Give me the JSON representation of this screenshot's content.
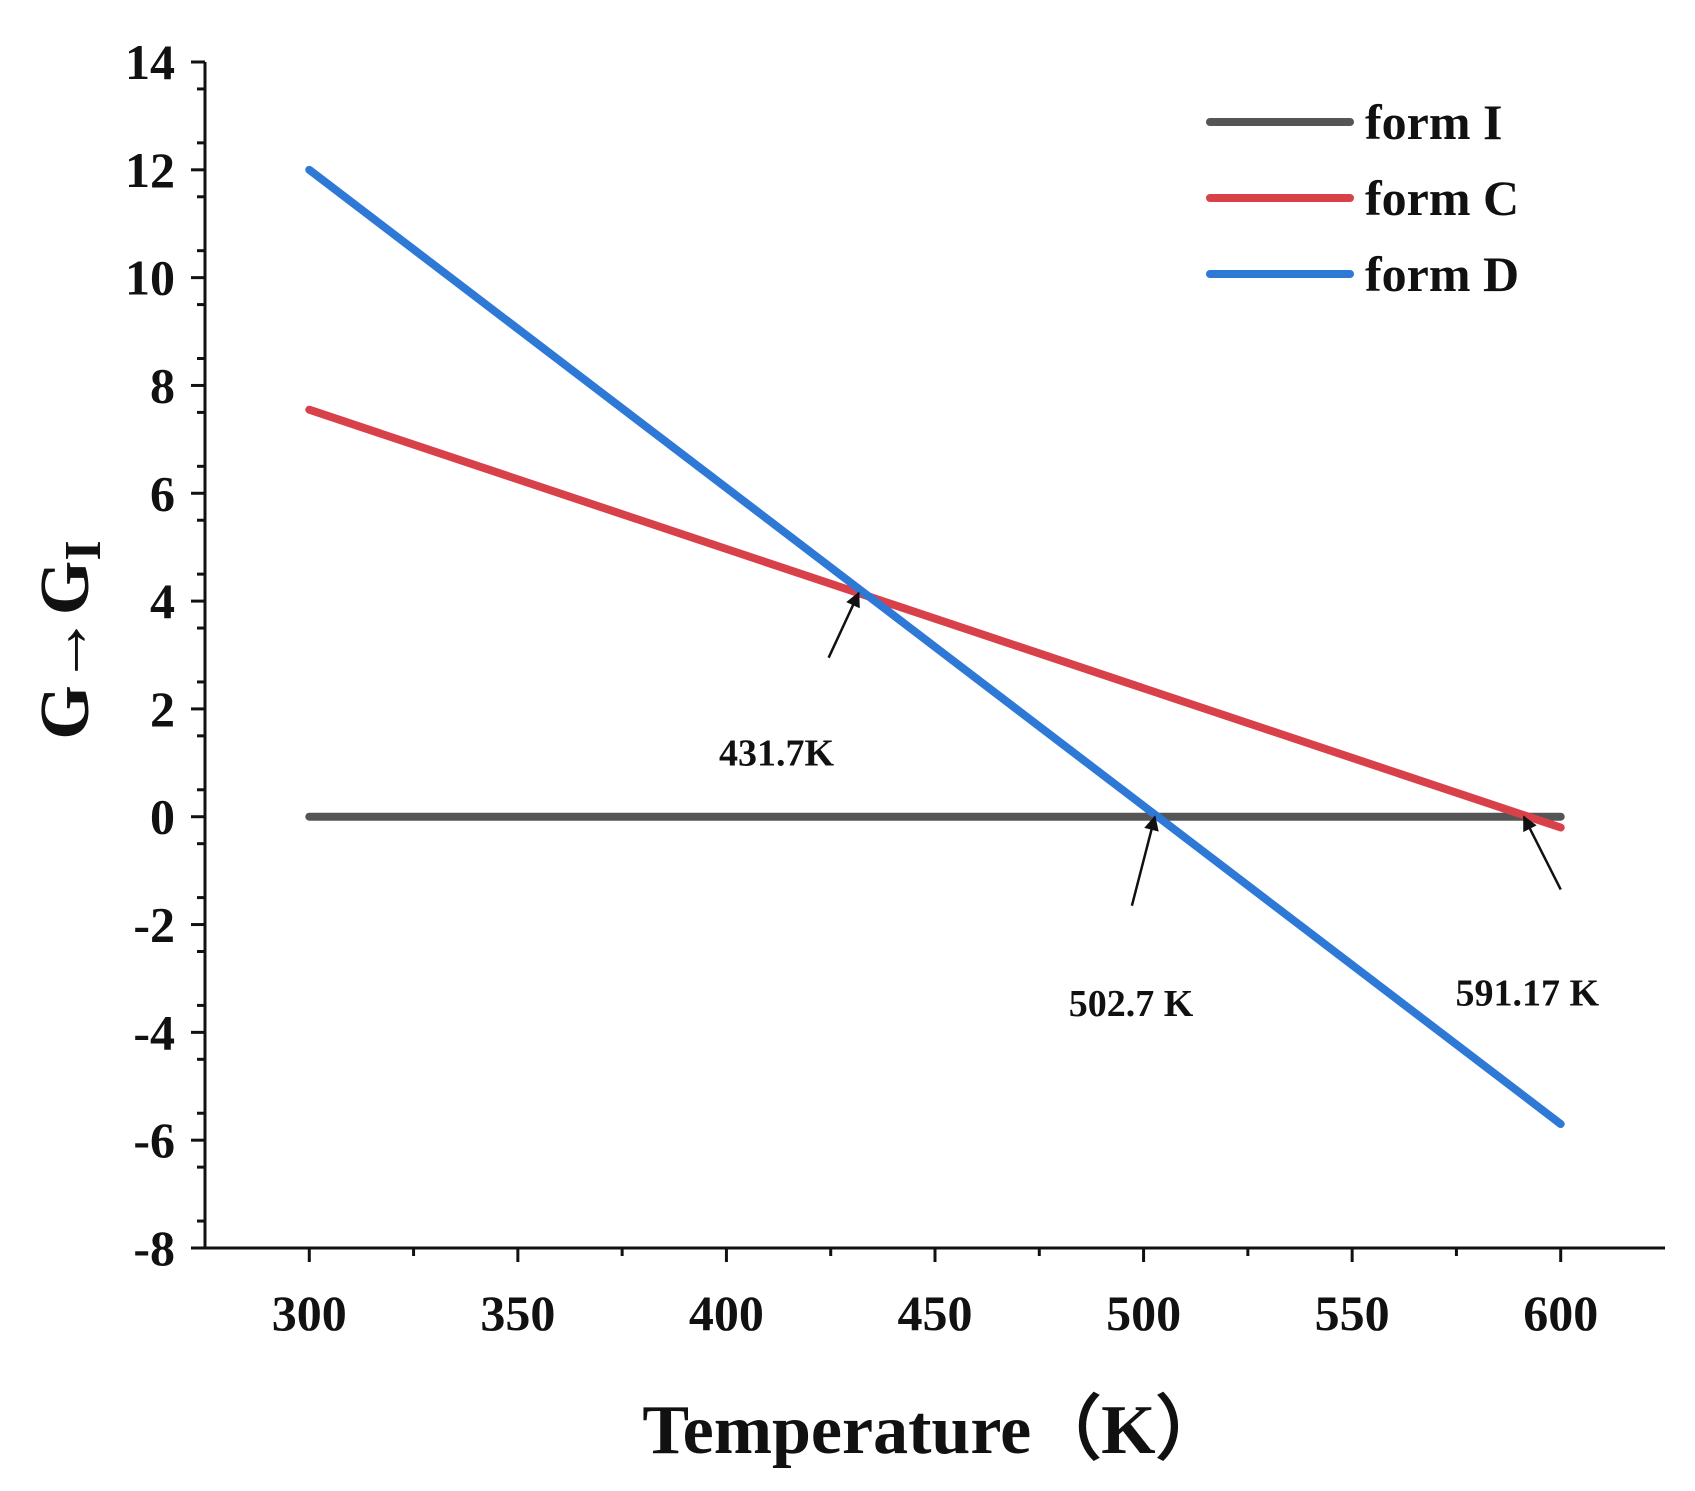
{
  "chart_data": {
    "type": "line",
    "title": "",
    "xlabel": "Temperature（K）",
    "ylabel_main": "G→G",
    "ylabel_sub": "I",
    "xlim": [
      275,
      625
    ],
    "ylim": [
      -8,
      14
    ],
    "x_ticks": [
      300,
      350,
      400,
      450,
      500,
      550,
      600
    ],
    "x_minor_ticks": [
      325,
      375,
      425,
      475,
      525,
      575
    ],
    "y_ticks": [
      -8,
      -6,
      -4,
      -2,
      0,
      2,
      4,
      6,
      8,
      10,
      12,
      14
    ],
    "y_minor_step": 0.5,
    "grid": false,
    "legend_position": "top-right",
    "series": [
      {
        "name": "form I",
        "color": "#555555",
        "x": [
          300,
          600
        ],
        "y": [
          0,
          0
        ]
      },
      {
        "name": "form C",
        "color": "#d9414a",
        "x": [
          300,
          600
        ],
        "y": [
          7.55,
          -0.2
        ]
      },
      {
        "name": "form D",
        "color": "#2e78d6",
        "x": [
          300,
          600
        ],
        "y": [
          12.0,
          -5.7
        ]
      }
    ],
    "annotations": [
      {
        "text": "431.7K",
        "target_x": 431.7,
        "target_y": 4.15,
        "tail_x": 424.5,
        "tail_y": 2.95,
        "label_x": 412,
        "label_y": 0.95
      },
      {
        "text": "502.7 K",
        "target_x": 502.7,
        "target_y": 0,
        "tail_x": 497.2,
        "tail_y": -1.65,
        "label_x": 497,
        "label_y": -3.7
      },
      {
        "text": "591.17 K",
        "target_x": 591.17,
        "target_y": 0,
        "tail_x": 600,
        "tail_y": -1.35,
        "label_x": 592,
        "label_y": -3.5
      }
    ]
  }
}
